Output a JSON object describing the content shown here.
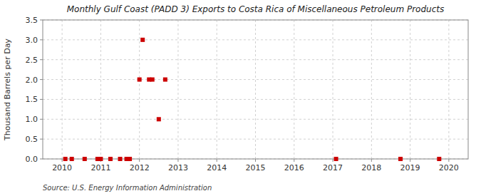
{
  "chart_data": {
    "type": "scatter",
    "title": "Monthly Gulf Coast (PADD 3) Exports to Costa Rica of Miscellaneous Petroleum Products",
    "ylabel": "Thousand Barrels per Day",
    "annotations": [
      "Source: U.S. Energy Information Administration"
    ],
    "x": [
      2010.0833,
      2010.25,
      2010.5833,
      2010.9167,
      2011.0,
      2011.25,
      2011.5,
      2011.6667,
      2011.75,
      2012.0,
      2012.0833,
      2012.25,
      2012.3333,
      2012.5,
      2012.6667,
      2017.0833,
      2018.75,
      2019.75
    ],
    "values": [
      0.0,
      0.0,
      0.0,
      0.0,
      0.0,
      0.0,
      0.0,
      0.0,
      0.0,
      2.0,
      3.0,
      2.0,
      2.0,
      1.0,
      2.0,
      0.0,
      0.0,
      0.0
    ],
    "color": "#cc0000",
    "marker": "square",
    "xlim": [
      2009.5,
      2020.5
    ],
    "ylim": [
      0,
      3.5
    ],
    "xticks": [
      2010,
      2011,
      2012,
      2013,
      2014,
      2015,
      2016,
      2017,
      2018,
      2019,
      2020
    ],
    "yticks": [
      {
        "value": 0.0,
        "label": "0.0"
      },
      0.5,
      {
        "value": 1.0,
        "label": "1.0"
      },
      1.5,
      {
        "value": 2.0,
        "label": "2.0"
      },
      2.5,
      {
        "value": 3.0,
        "label": "3.0"
      },
      3.5
    ],
    "grid": true
  }
}
